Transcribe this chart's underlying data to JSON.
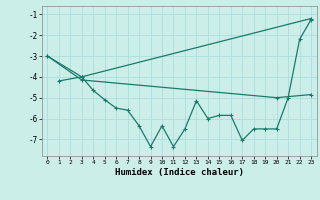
{
  "xlabel": "Humidex (Indice chaleur)",
  "bg_color": "#cceee8",
  "grid_color": "#aadddd",
  "line_color": "#1a7a6a",
  "ylim": [
    -7.8,
    -0.6
  ],
  "xlim": [
    -0.5,
    23.5
  ],
  "yticks": [
    -7,
    -6,
    -5,
    -4,
    -3,
    -2,
    -1
  ],
  "xticks": [
    0,
    1,
    2,
    3,
    4,
    5,
    6,
    7,
    8,
    9,
    10,
    11,
    12,
    13,
    14,
    15,
    16,
    17,
    18,
    19,
    20,
    21,
    22,
    23
  ],
  "line1_x": [
    0,
    3,
    23
  ],
  "line1_y": [
    -3.0,
    -4.0,
    -1.2
  ],
  "line2_x": [
    0,
    3,
    20,
    23
  ],
  "line2_y": [
    -3.0,
    -4.15,
    -5.0,
    -4.85
  ],
  "line3_x": [
    1,
    3,
    4,
    5,
    6,
    7,
    8,
    9,
    10,
    11,
    12,
    13,
    14,
    15,
    16,
    17,
    18,
    19,
    20,
    21,
    22,
    23
  ],
  "line3_y": [
    -4.2,
    -4.0,
    -4.65,
    -5.1,
    -5.5,
    -5.6,
    -6.35,
    -7.35,
    -6.35,
    -7.35,
    -6.5,
    -5.15,
    -6.0,
    -5.85,
    -5.85,
    -7.05,
    -6.5,
    -6.5,
    -6.5,
    -5.0,
    -2.2,
    -1.25
  ]
}
